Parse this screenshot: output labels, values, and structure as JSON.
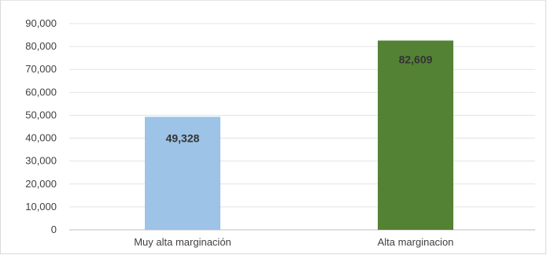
{
  "chart_data": {
    "type": "bar",
    "title": "",
    "xlabel": "",
    "ylabel": "",
    "categories": [
      "Muy alta marginación",
      "Alta marginacion"
    ],
    "values": [
      49328,
      82609
    ],
    "data_labels": [
      "49,328",
      "82,609"
    ],
    "bar_colors": [
      "#9dc3e6",
      "#548235"
    ],
    "ylim": [
      0,
      90000
    ],
    "yticks": [
      0,
      10000,
      20000,
      30000,
      40000,
      50000,
      60000,
      70000,
      80000,
      90000
    ],
    "ytick_labels": [
      "0",
      "10,000",
      "20,000",
      "30,000",
      "40,000",
      "50,000",
      "60,000",
      "70,000",
      "80,000",
      "90,000"
    ],
    "grid": true,
    "legend": "none"
  }
}
